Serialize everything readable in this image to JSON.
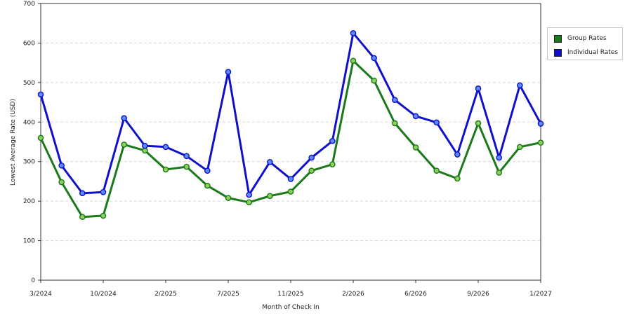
{
  "chart_data": {
    "type": "line",
    "title": "",
    "xlabel": "Month of Check In",
    "ylabel": "Lowest Average Rate (USD)",
    "ylim": [
      0,
      700
    ],
    "yticks": [
      0,
      100,
      200,
      300,
      400,
      500,
      600,
      700
    ],
    "grid": true,
    "legend_position": "right",
    "x_tick_labels": [
      {
        "index": 0,
        "label": "3/2024"
      },
      {
        "index": 3,
        "label": "10/2024"
      },
      {
        "index": 6,
        "label": "2/2025"
      },
      {
        "index": 9,
        "label": "7/2025"
      },
      {
        "index": 12,
        "label": "11/2025"
      },
      {
        "index": 15,
        "label": "2/2026"
      },
      {
        "index": 18,
        "label": "6/2026"
      },
      {
        "index": 21,
        "label": "9/2026"
      },
      {
        "index": 24,
        "label": "1/2027"
      }
    ],
    "point_count": 25,
    "series": [
      {
        "name": "Group Rates",
        "color": "#1a7a1a",
        "values": [
          360,
          248,
          160,
          163,
          343,
          328,
          280,
          287,
          239,
          208,
          197,
          213,
          224,
          277,
          293,
          555,
          505,
          397,
          336,
          277,
          257,
          397,
          272,
          337,
          348
        ]
      },
      {
        "name": "Individual Rates",
        "color": "#1010cc",
        "values": [
          470,
          290,
          220,
          223,
          410,
          340,
          337,
          314,
          277,
          527,
          216,
          299,
          256,
          310,
          352,
          625,
          562,
          456,
          415,
          399,
          318,
          485,
          310,
          493,
          396
        ]
      }
    ]
  }
}
